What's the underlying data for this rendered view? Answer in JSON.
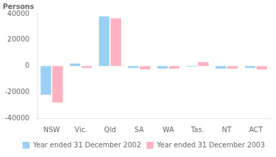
{
  "chart_data": {
    "type": "bar",
    "ylabel": "Persons",
    "categories": [
      "NSW",
      "Vic.",
      "Qld",
      "SA",
      "WA",
      "Tas.",
      "NT",
      "ACT"
    ],
    "series": [
      {
        "name": "Year ended 31 December 2002",
        "values": [
          -22000,
          2000,
          38000,
          -1500,
          -2000,
          -500,
          -2000,
          -1500
        ]
      },
      {
        "name": "Year ended 31 December 2003",
        "values": [
          -28000,
          -1500,
          36500,
          -2500,
          -2000,
          3000,
          -2000,
          -2500
        ]
      }
    ],
    "ylim": [
      -40000,
      40000
    ],
    "yticks": [
      -40000,
      -20000,
      0,
      20000,
      40000
    ],
    "grid": false,
    "legend": "lower right"
  }
}
